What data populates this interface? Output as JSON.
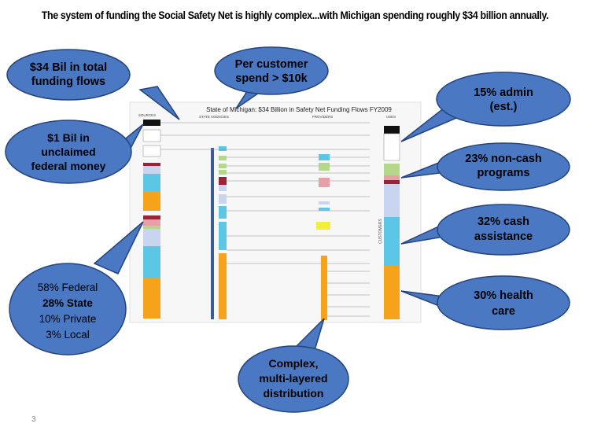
{
  "slide": {
    "headline": "The system of funding the Social Safety Net is highly complex...with Michigan spending roughly $34 billion annually.",
    "number": "3"
  },
  "diagram": {
    "title": "State of Michigan: $34 Billion in Safety Net Funding Flows FY2009",
    "columns": {
      "sources": "SOURCES",
      "agencies": "STATE AGENCIES",
      "providers": "PROVIDERS",
      "uses": "USES",
      "customers": "CUSTOMERS"
    },
    "colors": {
      "orange": "#f7a21b",
      "light_blue": "#5bc6e6",
      "pale_blue": "#c9d5ee",
      "dark_red": "#9b2335",
      "green": "#b3d88a",
      "pink": "#e8a0a8",
      "yellow": "#f3ee3a",
      "bubble_fill": "#4a78c2",
      "bubble_stroke": "#23447e"
    }
  },
  "callouts": {
    "total_flows": [
      "$34 Bil in total",
      "funding flows"
    ],
    "per_customer": [
      "Per customer",
      "spend > $10k"
    ],
    "unclaimed": [
      "$1 Bil in",
      "unclaimed",
      "federal money"
    ],
    "funding_mix": [
      "58% Federal",
      "28% State",
      "10% Private",
      "3% Local"
    ],
    "complex": [
      "Complex,",
      "multi-layered",
      "distribution"
    ],
    "admin": [
      "15% admin",
      "(est.)"
    ],
    "non_cash": [
      "23% non-cash",
      "programs"
    ],
    "cash": [
      "32% cash",
      "assistance"
    ],
    "health": [
      "30% health",
      "care"
    ]
  }
}
